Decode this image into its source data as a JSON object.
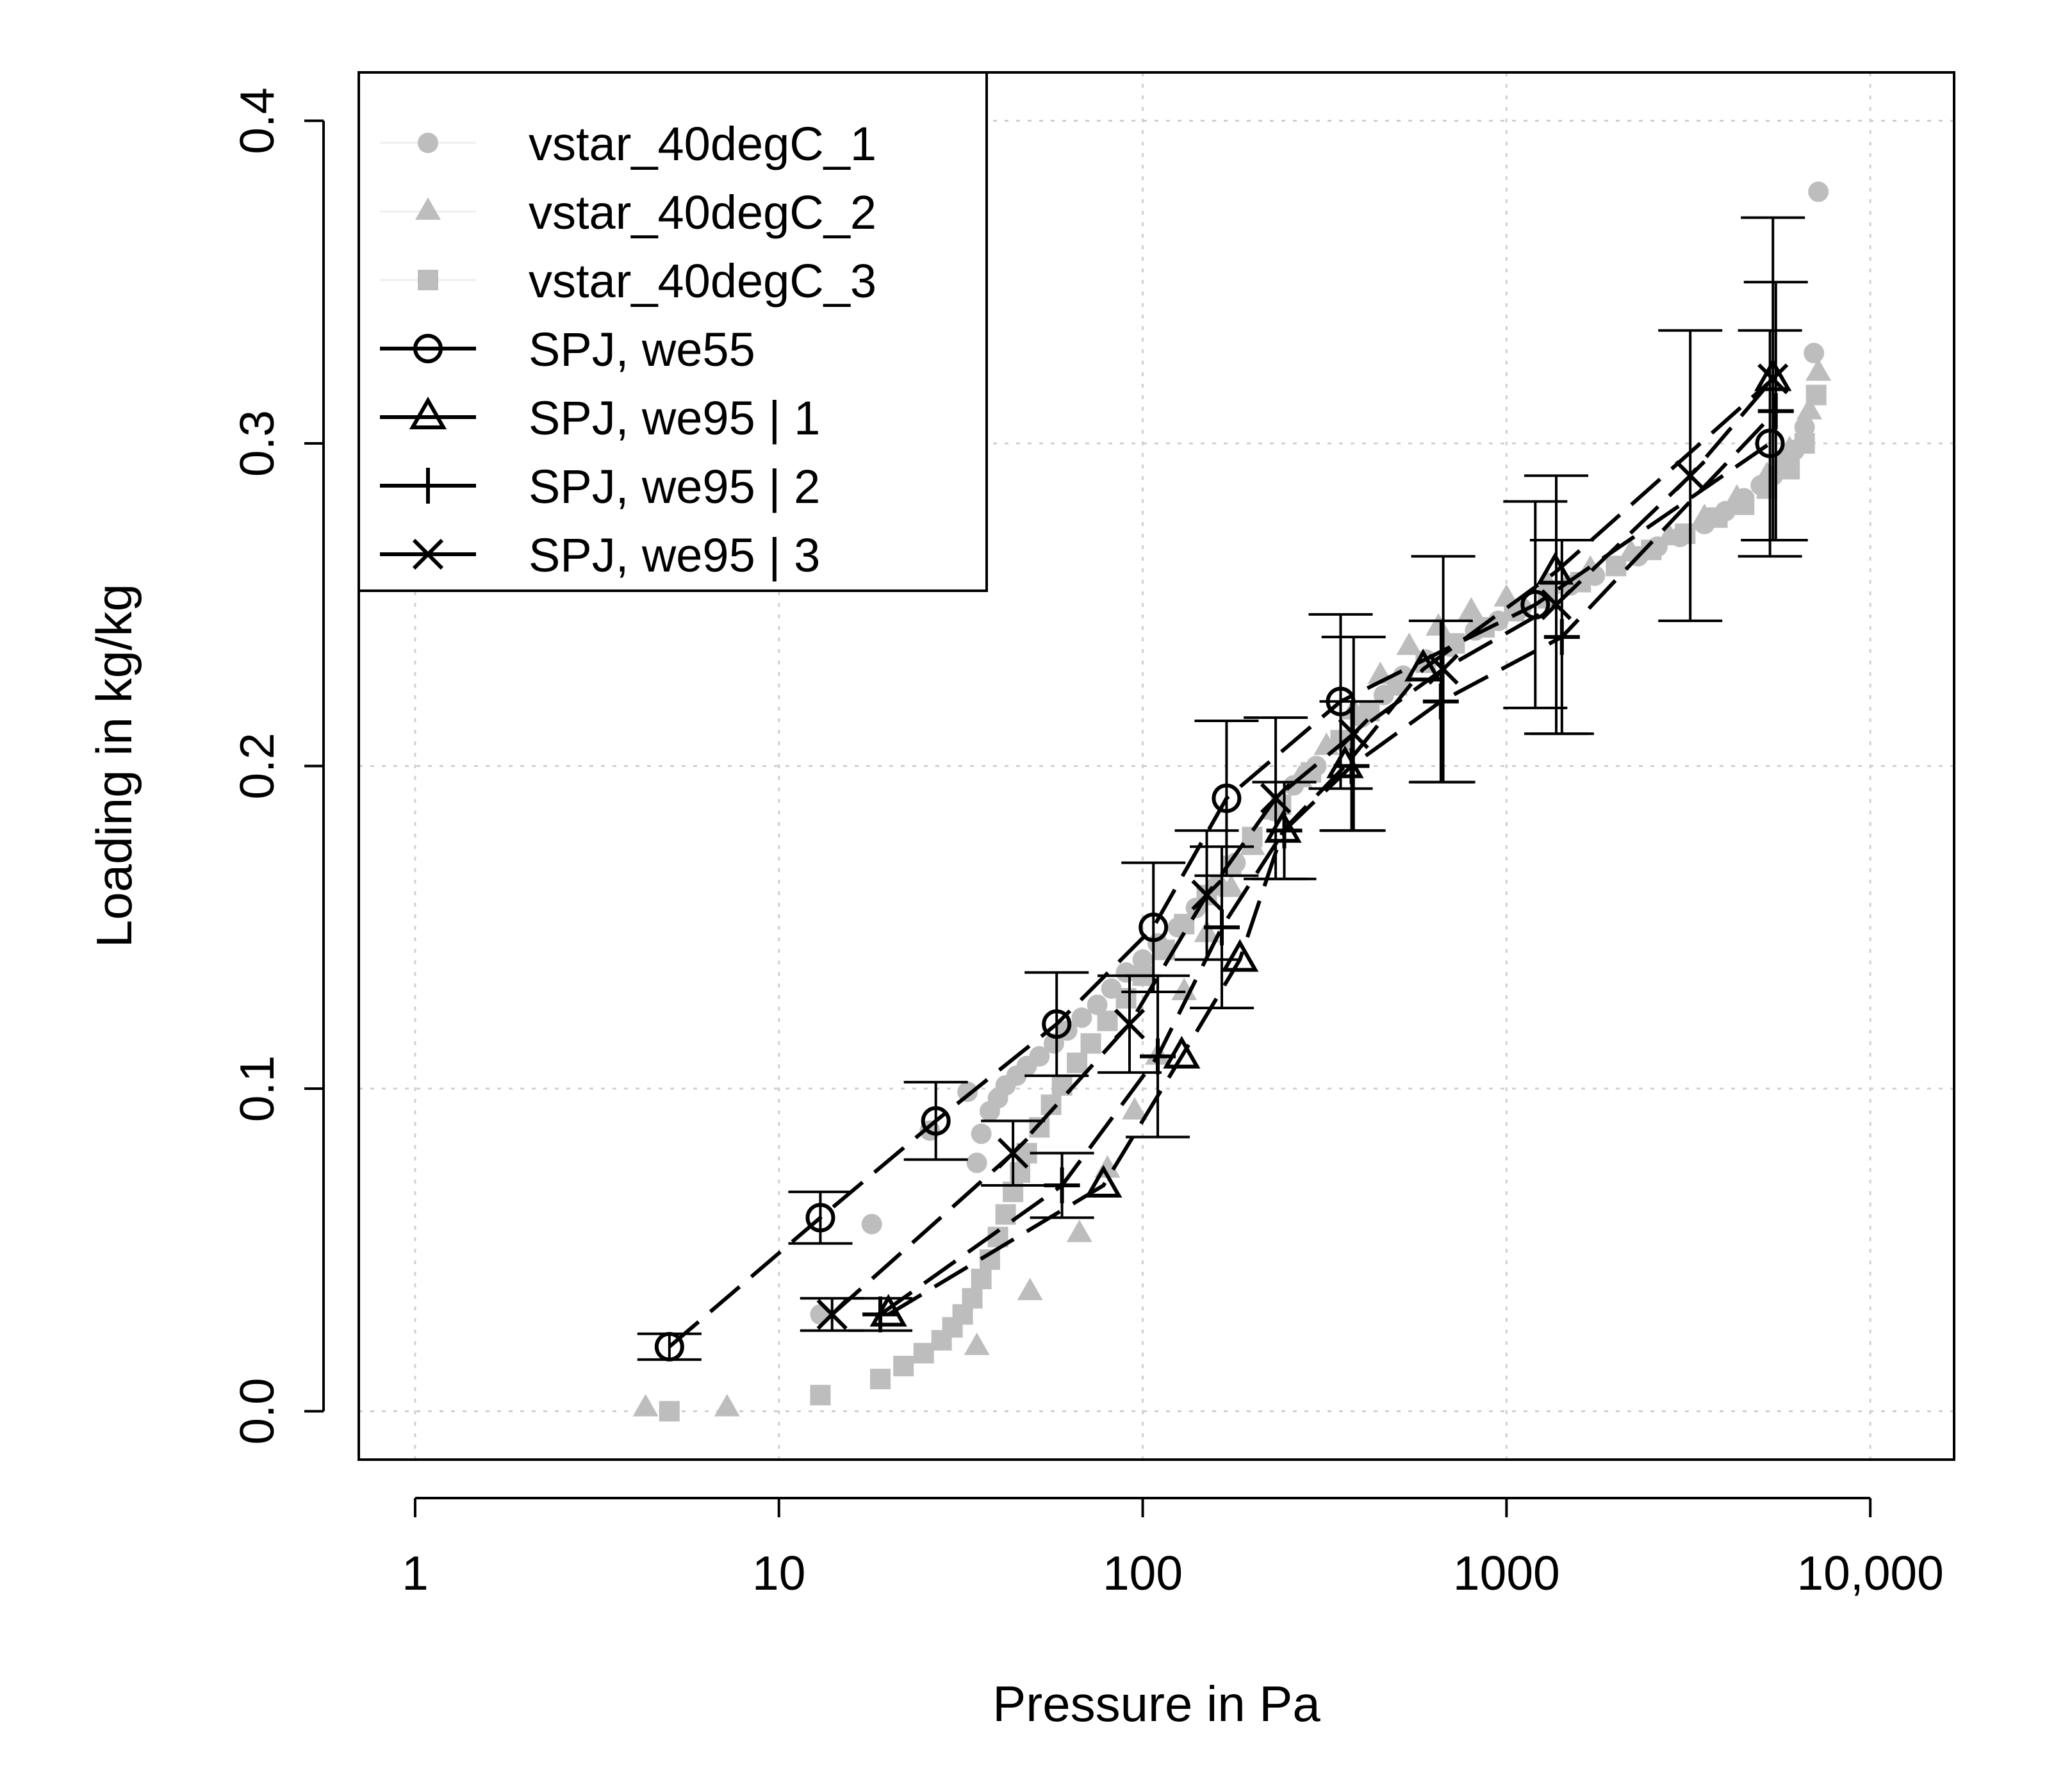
{
  "chart_data": {
    "type": "scatter",
    "title": "",
    "xlabel": "Pressure in Pa",
    "ylabel": "Loading in kg/kg",
    "xscale": "log",
    "xlim": [
      0.7,
      17000
    ],
    "ylim": [
      -0.015,
      0.415
    ],
    "x_ticks": [
      1,
      10,
      100,
      1000,
      10000
    ],
    "x_tick_labels": [
      "1",
      "10",
      "100",
      "1000",
      "10,000"
    ],
    "y_ticks": [
      0.0,
      0.1,
      0.2,
      0.3,
      0.4
    ],
    "y_tick_labels": [
      "0.0",
      "0.1",
      "0.2",
      "0.3",
      "0.4"
    ],
    "grid": true,
    "legend_position": "top-left",
    "colors": {
      "measured": "#bdbdbd",
      "model": "#000000"
    },
    "series": [
      {
        "name": "vstar_40degC_1",
        "kind": "measured",
        "marker": "circle",
        "x": [
          13,
          18,
          26,
          33,
          35,
          36,
          38,
          40,
          42,
          45,
          48,
          52,
          57,
          62,
          68,
          75,
          82,
          90,
          100,
          110,
          125,
          140,
          160,
          180,
          200,
          230,
          260,
          300,
          350,
          400,
          460,
          520,
          600,
          700,
          820,
          950,
          1100,
          1300,
          1500,
          1750,
          2000,
          2300,
          2600,
          3000,
          3500,
          4000,
          4500,
          5000,
          5400,
          5800,
          6200,
          6600,
          7000,
          7200
        ],
        "y": [
          0.03,
          0.058,
          0.087,
          0.099,
          0.077,
          0.086,
          0.093,
          0.097,
          0.101,
          0.104,
          0.107,
          0.11,
          0.114,
          0.118,
          0.122,
          0.126,
          0.131,
          0.136,
          0.14,
          0.145,
          0.15,
          0.156,
          0.163,
          0.17,
          0.178,
          0.186,
          0.194,
          0.2,
          0.208,
          0.215,
          0.222,
          0.228,
          0.233,
          0.237,
          0.242,
          0.245,
          0.249,
          0.252,
          0.256,
          0.259,
          0.262,
          0.265,
          0.268,
          0.271,
          0.275,
          0.279,
          0.283,
          0.287,
          0.29,
          0.294,
          0.298,
          0.305,
          0.328,
          0.378
        ]
      },
      {
        "name": "vstar_40degC_2",
        "kind": "measured",
        "marker": "triangle",
        "x": [
          4.3,
          7.2,
          35,
          49,
          67,
          80,
          95,
          110,
          130,
          150,
          175,
          200,
          230,
          270,
          320,
          380,
          450,
          540,
          650,
          800,
          1000,
          1300,
          1700,
          2200,
          2800,
          3500,
          4300,
          5200,
          6000,
          6800,
          7200
        ],
        "y": [
          0.001,
          0.001,
          0.02,
          0.037,
          0.055,
          0.075,
          0.093,
          0.11,
          0.13,
          0.148,
          0.162,
          0.175,
          0.186,
          0.196,
          0.206,
          0.217,
          0.228,
          0.237,
          0.243,
          0.248,
          0.252,
          0.256,
          0.261,
          0.266,
          0.271,
          0.277,
          0.283,
          0.29,
          0.298,
          0.31,
          0.322
        ]
      },
      {
        "name": "vstar_40degC_3",
        "kind": "measured",
        "marker": "square",
        "x": [
          5,
          13,
          19,
          22,
          25,
          28,
          30,
          32,
          34,
          36,
          38,
          40,
          42,
          44,
          46,
          48,
          52,
          56,
          60,
          66,
          72,
          80,
          90,
          100,
          115,
          130,
          150,
          175,
          200,
          240,
          290,
          350,
          420,
          500,
          600,
          720,
          870,
          1050,
          1300,
          1600,
          2000,
          2500,
          3100,
          3800,
          4500,
          5200,
          6000,
          6600,
          7100
        ],
        "y": [
          0.0,
          0.005,
          0.01,
          0.014,
          0.018,
          0.022,
          0.026,
          0.03,
          0.035,
          0.041,
          0.047,
          0.054,
          0.061,
          0.068,
          0.074,
          0.08,
          0.088,
          0.095,
          0.101,
          0.108,
          0.114,
          0.121,
          0.128,
          0.135,
          0.143,
          0.151,
          0.16,
          0.169,
          0.178,
          0.188,
          0.198,
          0.208,
          0.217,
          0.225,
          0.232,
          0.238,
          0.243,
          0.248,
          0.252,
          0.257,
          0.262,
          0.267,
          0.272,
          0.277,
          0.281,
          0.286,
          0.292,
          0.3,
          0.315
        ]
      },
      {
        "name": "SPJ, we55",
        "kind": "model",
        "marker": "open-circle",
        "line": "longdash",
        "x": [
          5,
          13,
          27,
          58,
          107,
          170,
          350,
          1200,
          5300
        ],
        "y": [
          0.02,
          0.06,
          0.09,
          0.12,
          0.15,
          0.19,
          0.22,
          0.25,
          0.3
        ],
        "err": [
          0.004,
          0.008,
          0.012,
          0.016,
          0.02,
          0.024,
          0.027,
          0.032,
          0.035
        ]
      },
      {
        "name": "SPJ, we95 | 1",
        "kind": "model",
        "marker": "open-triangle",
        "line": "longdash",
        "x": [
          20,
          78,
          128,
          185,
          243,
          360,
          590,
          1360,
          5400
        ],
        "y": [
          0.03,
          0.07,
          0.11,
          0.14,
          0.18,
          0.2,
          0.23,
          0.26,
          0.32
        ]
      },
      {
        "name": "SPJ, we95 | 2",
        "kind": "model",
        "marker": "plus",
        "line": "longdash",
        "x": [
          19,
          60,
          110,
          165,
          245,
          375,
          660,
          1420,
          5500
        ],
        "y": [
          0.03,
          0.07,
          0.11,
          0.15,
          0.18,
          0.2,
          0.22,
          0.24,
          0.31
        ],
        "err": [
          0.005,
          0.01,
          0.025,
          0.025,
          0.015,
          0.02,
          0.025,
          0.03,
          0.04
        ]
      },
      {
        "name": "SPJ, we95 | 3",
        "kind": "model",
        "marker": "cross",
        "line": "longdash",
        "x": [
          14,
          44,
          92,
          150,
          232,
          380,
          670,
          1370,
          3200,
          5400
        ],
        "y": [
          0.03,
          0.08,
          0.12,
          0.16,
          0.19,
          0.21,
          0.23,
          0.25,
          0.29,
          0.32
        ],
        "err": [
          0.005,
          0.01,
          0.015,
          0.02,
          0.025,
          0.03,
          0.035,
          0.04,
          0.045,
          0.05
        ]
      }
    ]
  }
}
